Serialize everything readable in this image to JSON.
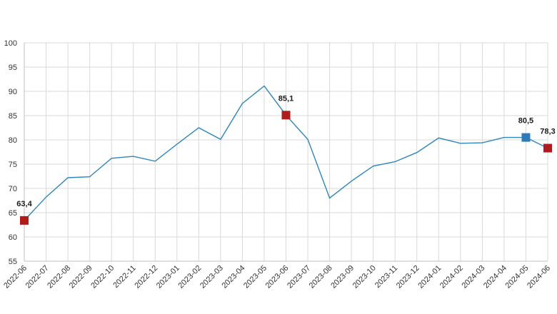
{
  "chart_data": {
    "type": "line",
    "title": "",
    "xlabel": "",
    "ylabel": "",
    "ylim": [
      55,
      100
    ],
    "yticks": [
      55,
      60,
      65,
      70,
      75,
      80,
      85,
      90,
      95,
      100
    ],
    "grid": true,
    "legend": "none",
    "categories": [
      "2022-06",
      "2022-07",
      "2022-08",
      "2022-09",
      "2022-10",
      "2022-11",
      "2022-12",
      "2023-01",
      "2023-02",
      "2023-03",
      "2023-04",
      "2023-05",
      "2023-06",
      "2023-07",
      "2023-08",
      "2023-09",
      "2023-10",
      "2023-11",
      "2023-12",
      "2024-01",
      "2024-02",
      "2024-03",
      "2024-04",
      "2024-05",
      "2024-06"
    ],
    "series": [
      {
        "values": [
          63.4,
          68.2,
          72.2,
          72.4,
          76.2,
          76.6,
          75.6,
          79.1,
          82.5,
          80.1,
          87.5,
          91.1,
          85.1,
          80.1,
          68.0,
          71.5,
          74.6,
          75.5,
          77.4,
          80.4,
          79.3,
          79.4,
          80.5,
          80.5,
          78.3
        ]
      }
    ],
    "highlighted_points": [
      {
        "category": "2022-06",
        "value": 63.4,
        "label": "63,4",
        "marker_color": "#b01c1c"
      },
      {
        "category": "2023-06",
        "value": 85.1,
        "label": "85,1",
        "marker_color": "#b01c1c"
      },
      {
        "category": "2024-05",
        "value": 80.5,
        "label": "80,5",
        "marker_color": "#2e7ab8"
      },
      {
        "category": "2024-06",
        "value": 78.3,
        "label": "78,3",
        "marker_color": "#b01c1c"
      }
    ],
    "colors": {
      "line": "#2f86b9",
      "grid": "#d9d9d9"
    }
  }
}
